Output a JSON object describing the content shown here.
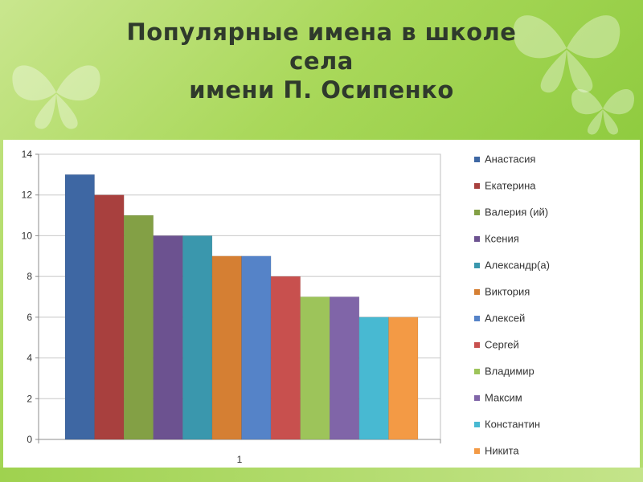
{
  "title_lines": [
    "Популярные имена в школе",
    "села",
    "имени П. Осипенко"
  ],
  "chart_data": {
    "type": "bar",
    "categories": [
      "1"
    ],
    "ylim": [
      0,
      14
    ],
    "yticks": [
      0,
      2,
      4,
      6,
      8,
      10,
      12,
      14
    ],
    "grid": true,
    "legend_position": "right",
    "series": [
      {
        "name": "Анастасия",
        "values": [
          13
        ],
        "color": "#3e67a3"
      },
      {
        "name": "Екатерина",
        "values": [
          12
        ],
        "color": "#a8403e"
      },
      {
        "name": "Валерия (ий)",
        "values": [
          11
        ],
        "color": "#83a045"
      },
      {
        "name": "Ксения",
        "values": [
          10
        ],
        "color": "#6c5290"
      },
      {
        "name": "Александр(а)",
        "values": [
          10
        ],
        "color": "#3a97ad"
      },
      {
        "name": "Виктория",
        "values": [
          9
        ],
        "color": "#d57f33"
      },
      {
        "name": "Алексей",
        "values": [
          9
        ],
        "color": "#5583c8"
      },
      {
        "name": "Сергей",
        "values": [
          8
        ],
        "color": "#c8504e"
      },
      {
        "name": "Владимир",
        "values": [
          7
        ],
        "color": "#9dc45a"
      },
      {
        "name": "Максим",
        "values": [
          7
        ],
        "color": "#8065a8"
      },
      {
        "name": "Константин",
        "values": [
          6
        ],
        "color": "#48b9d2"
      },
      {
        "name": "Никита",
        "values": [
          6
        ],
        "color": "#f39a45"
      }
    ]
  }
}
